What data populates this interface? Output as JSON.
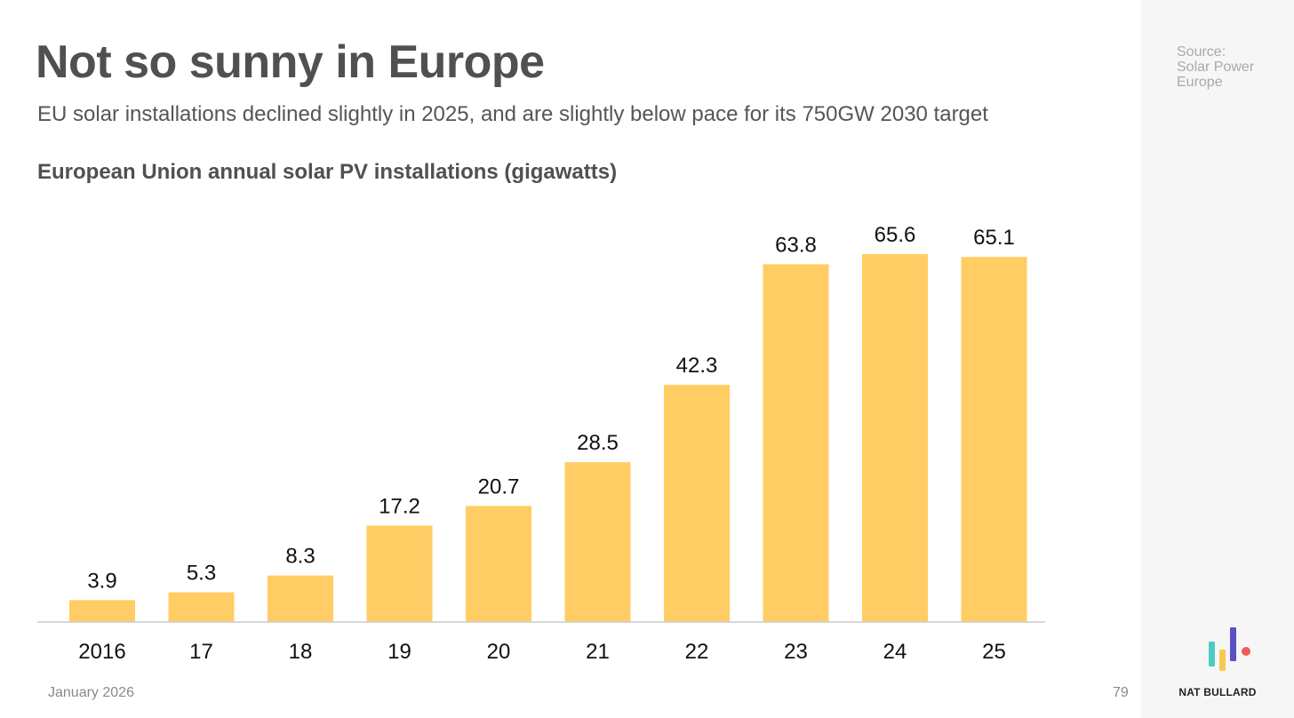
{
  "header": {
    "title": "Not so sunny in Europe",
    "subtitle": "EU solar installations declined slightly in 2025, and are slightly below pace for its 750GW 2030 target"
  },
  "source": {
    "line1": "Source:",
    "line2": "Solar Power",
    "line3": "Europe"
  },
  "chart_data": {
    "type": "bar",
    "title": "European Union annual solar PV installations (gigawatts)",
    "xlabel": "",
    "ylabel": "",
    "categories": [
      "2016",
      "17",
      "18",
      "19",
      "20",
      "21",
      "22",
      "23",
      "24",
      "25"
    ],
    "values": [
      3.9,
      5.3,
      8.3,
      17.2,
      20.7,
      28.5,
      42.3,
      63.8,
      65.6,
      65.1
    ],
    "data_labels": [
      "3.9",
      "5.3",
      "8.3",
      "17.2",
      "20.7",
      "28.5",
      "42.3",
      "63.8",
      "65.6",
      "65.1"
    ],
    "ylim": [
      0,
      70
    ],
    "grid": false,
    "bar_color": "#ffcd64",
    "baseline_color": "#cccccc"
  },
  "footer": {
    "date": "January 2026",
    "page": "79",
    "brand": "NAT BULLARD"
  },
  "logo": {
    "icon": "nat-bullard-bars-logo",
    "colors": [
      "#4ec9c6",
      "#f9c851",
      "#5b4fc4",
      "#f25a5a"
    ]
  }
}
